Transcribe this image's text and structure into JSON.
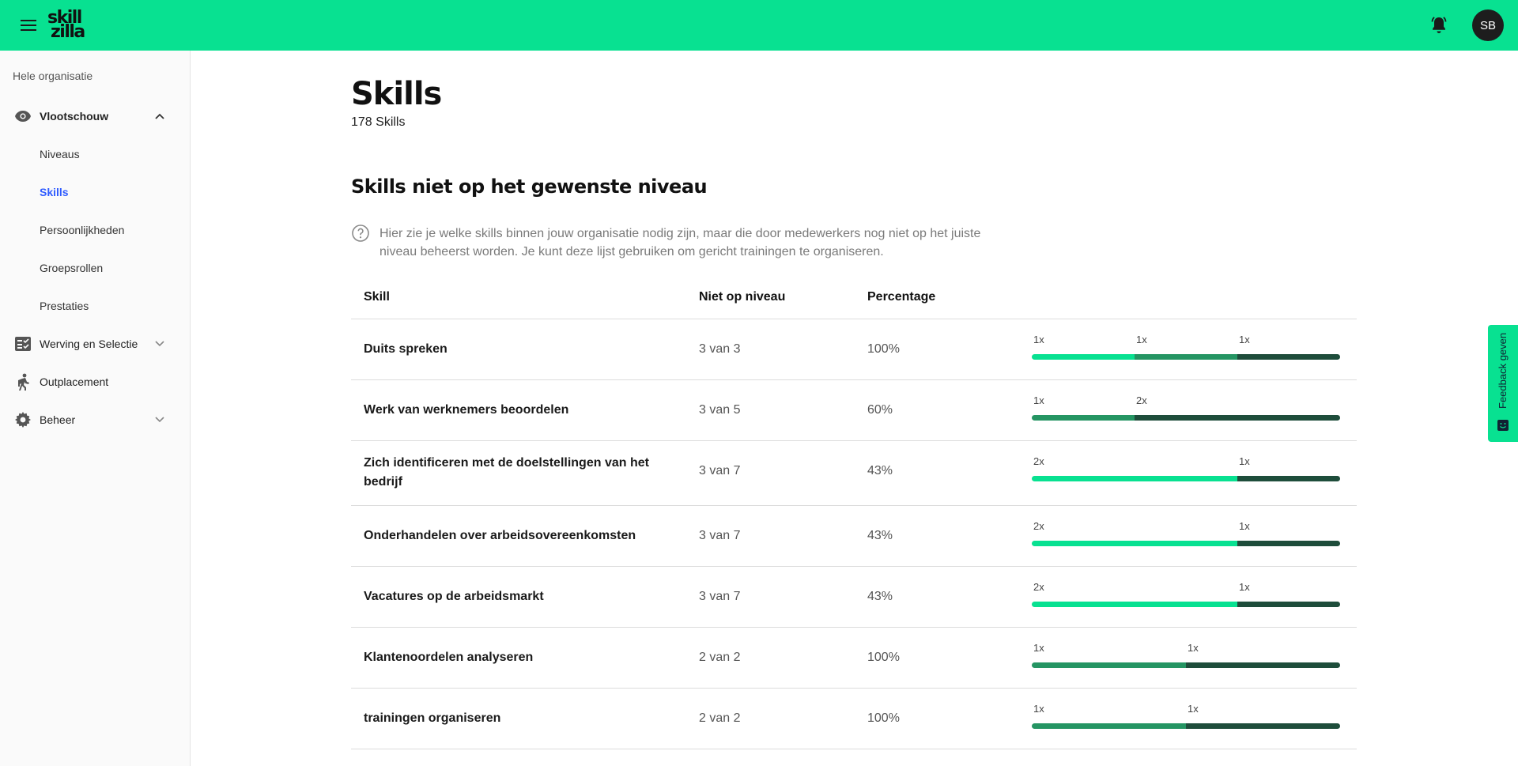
{
  "header": {
    "logo_line1": "skill",
    "logo_line2": "zilla",
    "avatar_initials": "SB",
    "brand_color": "#08e191"
  },
  "sidebar": {
    "org_label": "Hele organisatie",
    "vlootschouw": "Vlootschouw",
    "sub_items": [
      "Niveaus",
      "Skills",
      "Persoonlijkheden",
      "Groepsrollen",
      "Prestaties"
    ],
    "active_sub": "Skills",
    "werving": "Werving en Selectie",
    "outplacement": "Outplacement",
    "beheer": "Beheer"
  },
  "main": {
    "title": "Skills",
    "count_text": "178 Skills",
    "section_title": "Skills niet op het gewenste niveau",
    "help_text": "Hier zie je welke skills binnen jouw organisatie nodig zijn, maar die door medewerkers nog niet op het juiste niveau beheerst worden. Je kunt deze lijst gebruiken om gericht trainingen te organiseren."
  },
  "table": {
    "headers": {
      "skill": "Skill",
      "niet_op_niveau": "Niet op niveau",
      "percentage": "Percentage"
    },
    "rows": [
      {
        "skill": "Duits spreken",
        "niet_op_niveau": "3 van 3",
        "percentage": "100%",
        "segments": [
          {
            "label": "1x",
            "count": 1,
            "color": "#08e191"
          },
          {
            "label": "1x",
            "count": 1,
            "color": "#259563"
          },
          {
            "label": "1x",
            "count": 1,
            "color": "#1e4d3b"
          }
        ]
      },
      {
        "skill": "Werk van werknemers beoordelen",
        "niet_op_niveau": "3 van 5",
        "percentage": "60%",
        "segments": [
          {
            "label": "1x",
            "count": 1,
            "color": "#259563"
          },
          {
            "label": "2x",
            "count": 2,
            "color": "#1e4d3b"
          }
        ]
      },
      {
        "skill": "Zich identificeren met de doelstellingen van het bedrijf",
        "niet_op_niveau": "3 van 7",
        "percentage": "43%",
        "segments": [
          {
            "label": "2x",
            "count": 2,
            "color": "#08e191"
          },
          {
            "label": "1x",
            "count": 1,
            "color": "#1e4d3b"
          }
        ]
      },
      {
        "skill": "Onderhandelen over arbeidsovereenkomsten",
        "niet_op_niveau": "3 van 7",
        "percentage": "43%",
        "segments": [
          {
            "label": "2x",
            "count": 2,
            "color": "#08e191"
          },
          {
            "label": "1x",
            "count": 1,
            "color": "#1e4d3b"
          }
        ]
      },
      {
        "skill": "Vacatures op de arbeidsmarkt",
        "niet_op_niveau": "3 van 7",
        "percentage": "43%",
        "segments": [
          {
            "label": "2x",
            "count": 2,
            "color": "#08e191"
          },
          {
            "label": "1x",
            "count": 1,
            "color": "#1e4d3b"
          }
        ]
      },
      {
        "skill": "Klantenoordelen analyseren",
        "niet_op_niveau": "2 van 2",
        "percentage": "100%",
        "segments": [
          {
            "label": "1x",
            "count": 1,
            "color": "#259563"
          },
          {
            "label": "1x",
            "count": 1,
            "color": "#1e4d3b"
          }
        ]
      },
      {
        "skill": "trainingen organiseren",
        "niet_op_niveau": "2 van 2",
        "percentage": "100%",
        "segments": [
          {
            "label": "1x",
            "count": 1,
            "color": "#259563"
          },
          {
            "label": "1x",
            "count": 1,
            "color": "#1e4d3b"
          }
        ]
      }
    ]
  },
  "feedback": {
    "label": "Feedback geven"
  }
}
